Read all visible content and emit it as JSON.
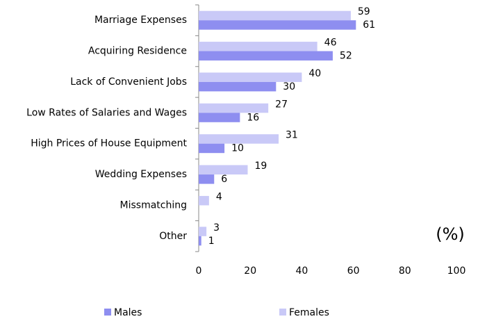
{
  "chart_data": {
    "type": "bar",
    "orientation": "horizontal",
    "categories": [
      "Marriage Expenses",
      "Acquiring Residence",
      "Lack of Convenient Jobs",
      "Low Rates of Salaries and Wages",
      "High Prices of House Equipment",
      "Wedding Expenses",
      "Missmatching",
      "Other"
    ],
    "series": [
      {
        "name": "Females",
        "color": "#c9c9f7",
        "values": [
          59,
          46,
          40,
          27,
          31,
          19,
          4,
          3
        ]
      },
      {
        "name": "Males",
        "color": "#8e8ef0",
        "values": [
          61,
          52,
          30,
          16,
          10,
          6,
          null,
          1
        ]
      }
    ],
    "xlim": [
      0,
      100
    ],
    "xticks": [
      0,
      20,
      40,
      60,
      80,
      100
    ],
    "annotation": "(%)",
    "legend": "bottom"
  }
}
